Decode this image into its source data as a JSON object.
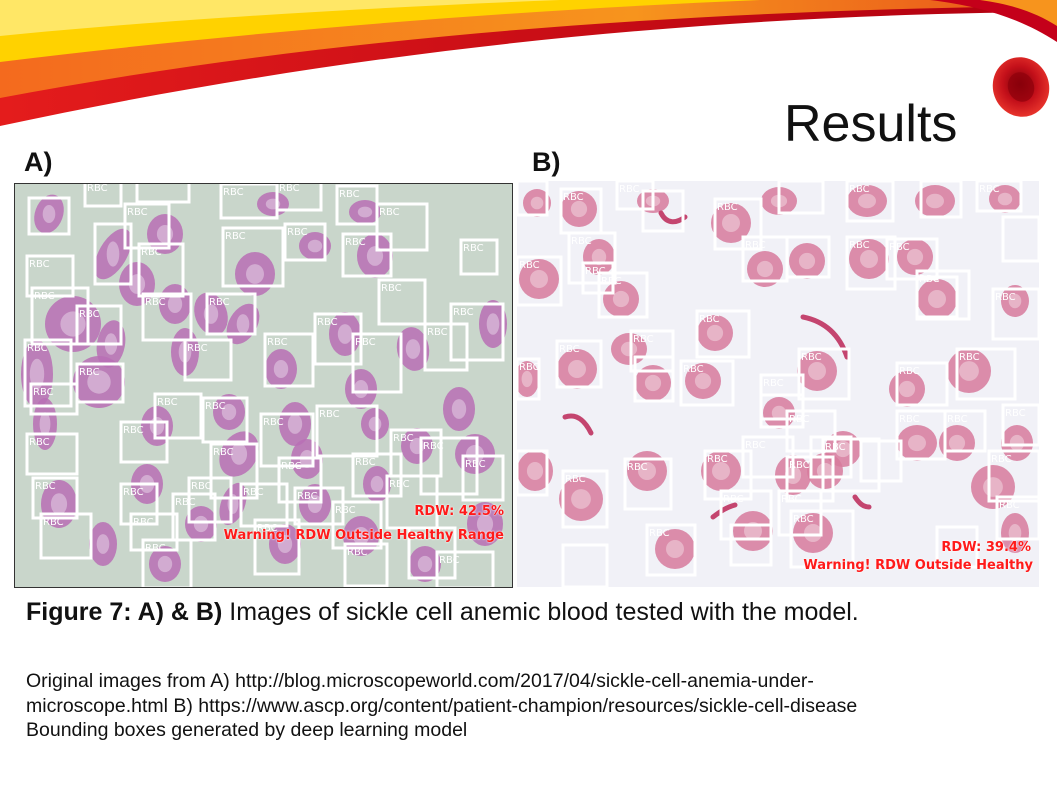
{
  "slide": {
    "title": "Results",
    "panel_a_label": "A)",
    "panel_b_label": "B)",
    "caption_bold": "Figure 7: A) & B)",
    "caption_text": " Images of sickle cell anemic blood tested with the model.",
    "source_lines": [
      "Original images from A) http://blog.microscopeworld.com/2017/04/sickle-cell-anemia-under-",
      "microscope.html B) https://www.ascp.org/content/patient-champion/resources/sickle-cell-disease",
      "Bounding boxes generated by deep learning model"
    ]
  },
  "image_a": {
    "box_label": "RBC",
    "rdw_text": "RDW: 42.5%",
    "warning_text": "Warning! RDW Outside Healthy Range",
    "background_color": "#c9d6cb",
    "cell_color": "#b86fb5"
  },
  "image_b": {
    "box_label": "RBC",
    "rdw_text": "RDW: 39.4%",
    "warning_text": "Warning! RDW Outside Healthy",
    "background_color": "#f1f1f7",
    "cell_color": "#d77a9c"
  },
  "colors": {
    "box_color": "#ffffff",
    "warning_color": "#ff1a1a",
    "header_red": "#d8131a",
    "header_orange": "#f7941d",
    "header_yellow": "#ffd200"
  },
  "icons": {
    "logo": "red-blood-cell-icon"
  }
}
